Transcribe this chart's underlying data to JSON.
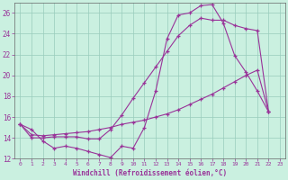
{
  "xlabel": "Windchill (Refroidissement éolien,°C)",
  "bg_color": "#caf0e0",
  "grid_color": "#99ccbb",
  "line_color": "#993399",
  "xlim": [
    -0.5,
    23.5
  ],
  "ylim": [
    12,
    27
  ],
  "yticks": [
    12,
    14,
    16,
    18,
    20,
    22,
    24,
    26
  ],
  "xticks": [
    0,
    1,
    2,
    3,
    4,
    5,
    6,
    7,
    8,
    9,
    10,
    11,
    12,
    13,
    14,
    15,
    16,
    17,
    18,
    19,
    20,
    21,
    22,
    23
  ],
  "series": [
    {
      "x": [
        0,
        1,
        2,
        3,
        4,
        5,
        6,
        7,
        8,
        9,
        10,
        11,
        12,
        13,
        14,
        15,
        16,
        17,
        18,
        19,
        20,
        21,
        22
      ],
      "y": [
        15.3,
        14.8,
        13.7,
        13.0,
        13.2,
        13.0,
        12.7,
        12.4,
        12.1,
        13.2,
        13.0,
        15.0,
        18.5,
        23.5,
        25.8,
        26.0,
        26.7,
        26.8,
        25.0,
        21.9,
        20.3,
        18.5,
        16.5
      ]
    },
    {
      "x": [
        0,
        1,
        2,
        3,
        4,
        5,
        6,
        7,
        8,
        9,
        10,
        11,
        12,
        13,
        14,
        15,
        16,
        17,
        18,
        19,
        20,
        21,
        22
      ],
      "y": [
        15.3,
        14.3,
        14.2,
        14.3,
        14.4,
        14.5,
        14.6,
        14.8,
        15.0,
        15.3,
        15.5,
        15.7,
        16.0,
        16.3,
        16.7,
        17.2,
        17.7,
        18.2,
        18.8,
        19.4,
        20.0,
        20.5,
        16.5
      ]
    },
    {
      "x": [
        0,
        1,
        2,
        3,
        4,
        5,
        6,
        7,
        8,
        9,
        10,
        11,
        12,
        13,
        14,
        15,
        16,
        17,
        18,
        19,
        20,
        21,
        22
      ],
      "y": [
        15.3,
        14.0,
        14.0,
        14.1,
        14.1,
        14.1,
        13.9,
        13.9,
        14.8,
        16.2,
        17.8,
        19.3,
        20.8,
        22.3,
        23.8,
        24.8,
        25.5,
        25.3,
        25.3,
        24.8,
        24.5,
        24.3,
        16.5
      ]
    }
  ]
}
